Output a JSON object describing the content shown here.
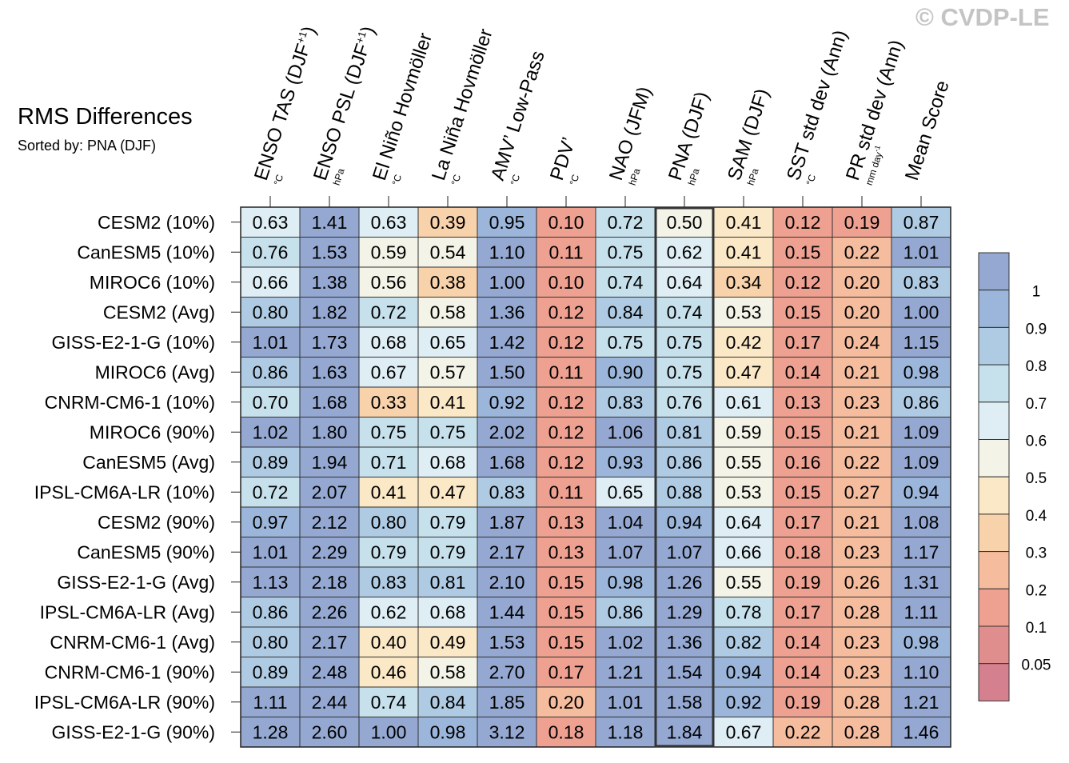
{
  "watermark": "© CVDP-LE",
  "chart_data": {
    "type": "heatmap",
    "title": "RMS Differences",
    "subtitle": "Sorted by: PNA (DJF)",
    "highlight_column": 7,
    "columns": [
      {
        "name": "ENSO TAS (DJF",
        "sup": "+1",
        "close": ")",
        "unit": "°C"
      },
      {
        "name": "ENSO PSL (DJF",
        "sup": "+1",
        "close": ")",
        "unit": "hPa"
      },
      {
        "name": "El Niño Hovmöller",
        "unit": "°C"
      },
      {
        "name": "La Niña Hovmöller",
        "unit": "°C"
      },
      {
        "name": "AMV’ Low-Pass",
        "unit": "°C"
      },
      {
        "name": "PDV’",
        "unit": "°C"
      },
      {
        "name": "NAO (JFM)",
        "unit": "hPa"
      },
      {
        "name": "PNA (DJF)",
        "unit": "hPa"
      },
      {
        "name": "SAM (DJF)",
        "unit": "hPa"
      },
      {
        "name": "SST std dev (Ann)",
        "unit": "°C"
      },
      {
        "name": "PR std dev (Ann)",
        "unit": "mm day",
        "unit_sup": "-1"
      },
      {
        "name": "Mean Score",
        "unit": ""
      }
    ],
    "rows": [
      {
        "label": "CESM2 (10%)",
        "values": [
          0.63,
          1.41,
          0.63,
          0.39,
          0.95,
          0.1,
          0.72,
          0.5,
          0.41,
          0.12,
          0.19,
          0.87
        ]
      },
      {
        "label": "CanESM5 (10%)",
        "values": [
          0.76,
          1.53,
          0.59,
          0.54,
          1.1,
          0.11,
          0.75,
          0.62,
          0.41,
          0.15,
          0.22,
          1.01
        ]
      },
      {
        "label": "MIROC6 (10%)",
        "values": [
          0.66,
          1.38,
          0.56,
          0.38,
          1.0,
          0.1,
          0.74,
          0.64,
          0.34,
          0.12,
          0.2,
          0.83
        ]
      },
      {
        "label": "CESM2 (Avg)",
        "values": [
          0.8,
          1.82,
          0.72,
          0.58,
          1.36,
          0.12,
          0.84,
          0.74,
          0.53,
          0.15,
          0.2,
          1.0
        ]
      },
      {
        "label": "GISS-E2-1-G (10%)",
        "values": [
          1.01,
          1.73,
          0.68,
          0.65,
          1.42,
          0.12,
          0.75,
          0.75,
          0.42,
          0.17,
          0.24,
          1.15
        ]
      },
      {
        "label": "MIROC6 (Avg)",
        "values": [
          0.86,
          1.63,
          0.67,
          0.57,
          1.5,
          0.11,
          0.9,
          0.75,
          0.47,
          0.14,
          0.21,
          0.98
        ]
      },
      {
        "label": "CNRM-CM6-1 (10%)",
        "values": [
          0.7,
          1.68,
          0.33,
          0.41,
          0.92,
          0.12,
          0.83,
          0.76,
          0.61,
          0.13,
          0.23,
          0.86
        ]
      },
      {
        "label": "MIROC6 (90%)",
        "values": [
          1.02,
          1.8,
          0.75,
          0.75,
          2.02,
          0.12,
          1.06,
          0.81,
          0.59,
          0.15,
          0.21,
          1.09
        ]
      },
      {
        "label": "CanESM5 (Avg)",
        "values": [
          0.89,
          1.94,
          0.71,
          0.68,
          1.68,
          0.12,
          0.93,
          0.86,
          0.55,
          0.16,
          0.22,
          1.09
        ]
      },
      {
        "label": "IPSL-CM6A-LR (10%)",
        "values": [
          0.72,
          2.07,
          0.41,
          0.47,
          0.83,
          0.11,
          0.65,
          0.88,
          0.53,
          0.15,
          0.27,
          0.94
        ]
      },
      {
        "label": "CESM2 (90%)",
        "values": [
          0.97,
          2.12,
          0.8,
          0.79,
          1.87,
          0.13,
          1.04,
          0.94,
          0.64,
          0.17,
          0.21,
          1.08
        ]
      },
      {
        "label": "CanESM5 (90%)",
        "values": [
          1.01,
          2.29,
          0.79,
          0.79,
          2.17,
          0.13,
          1.07,
          1.07,
          0.66,
          0.18,
          0.23,
          1.17
        ]
      },
      {
        "label": "GISS-E2-1-G (Avg)",
        "values": [
          1.13,
          2.18,
          0.83,
          0.81,
          2.1,
          0.15,
          0.98,
          1.26,
          0.55,
          0.19,
          0.26,
          1.31
        ]
      },
      {
        "label": "IPSL-CM6A-LR (Avg)",
        "values": [
          0.86,
          2.26,
          0.62,
          0.68,
          1.44,
          0.15,
          0.86,
          1.29,
          0.78,
          0.17,
          0.28,
          1.11
        ]
      },
      {
        "label": "CNRM-CM6-1 (Avg)",
        "values": [
          0.8,
          2.17,
          0.4,
          0.49,
          1.53,
          0.15,
          1.02,
          1.36,
          0.82,
          0.14,
          0.23,
          0.98
        ]
      },
      {
        "label": "CNRM-CM6-1 (90%)",
        "values": [
          0.89,
          2.48,
          0.46,
          0.58,
          2.7,
          0.17,
          1.21,
          1.54,
          0.94,
          0.14,
          0.23,
          1.1
        ]
      },
      {
        "label": "IPSL-CM6A-LR (90%)",
        "values": [
          1.11,
          2.44,
          0.74,
          0.84,
          1.85,
          0.2,
          1.01,
          1.58,
          0.92,
          0.19,
          0.28,
          1.21
        ]
      },
      {
        "label": "GISS-E2-1-G (90%)",
        "values": [
          1.28,
          2.6,
          1.0,
          0.98,
          3.12,
          0.18,
          1.18,
          1.84,
          0.67,
          0.22,
          0.28,
          1.46
        ]
      }
    ],
    "colorbar": {
      "levels": [
        0.05,
        0.1,
        0.2,
        0.3,
        0.4,
        0.5,
        0.6,
        0.7,
        0.8,
        0.9,
        1
      ],
      "tick_labels": [
        "0.05",
        "0.1",
        "0.2",
        "0.3",
        "0.4",
        "0.5",
        "0.6",
        "0.7",
        "0.8",
        "0.9",
        "1"
      ],
      "colors": [
        "#d4808f",
        "#e08d8d",
        "#eea191",
        "#f5bc9e",
        "#f8d2aa",
        "#fbe8c6",
        "#f3f3e7",
        "#deeef4",
        "#c6e0ec",
        "#afcbe3",
        "#9bb6da",
        "#94a8d2"
      ]
    }
  }
}
